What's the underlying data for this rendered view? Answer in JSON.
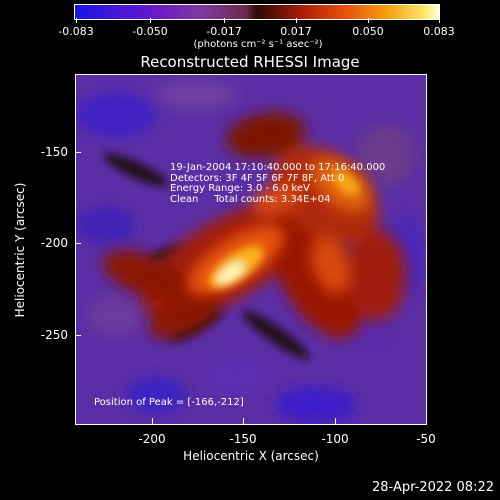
{
  "colorbar": {
    "ticks": [
      "-0.083",
      "-0.050",
      "-0.017",
      "0.017",
      "0.050",
      "0.083"
    ],
    "unit": "(photons cm⁻² s⁻¹ asec⁻²)",
    "colors": [
      "#1a16e6",
      "#7d3aa0",
      "#6a2a4a",
      "#2a0b08",
      "#b8220a",
      "#f7a012",
      "#fffde0"
    ]
  },
  "title": "Reconstructed RHESSI Image",
  "info": {
    "time": "19-Jan-2004 17:10:40.000 to 17:16:40.000",
    "detectors": "Detectors: 3F 4F 5F 6F 7F 8F, Att 0",
    "energy": "Energy Range: 3.0 - 6.0 keV",
    "clean": "Clean     Total counts: 3.34E+04"
  },
  "peak_label": "Position of Peak = [-166,-212]",
  "axes": {
    "x_label": "Heliocentric X (arcsec)",
    "y_label": "Heliocentric Y (arcsec)",
    "x_ticks": [
      "-200",
      "-150",
      "-100",
      "-50"
    ],
    "y_ticks": [
      "-150",
      "-200",
      "-250"
    ]
  },
  "timestamp": "28-Apr-2022 08:22"
}
